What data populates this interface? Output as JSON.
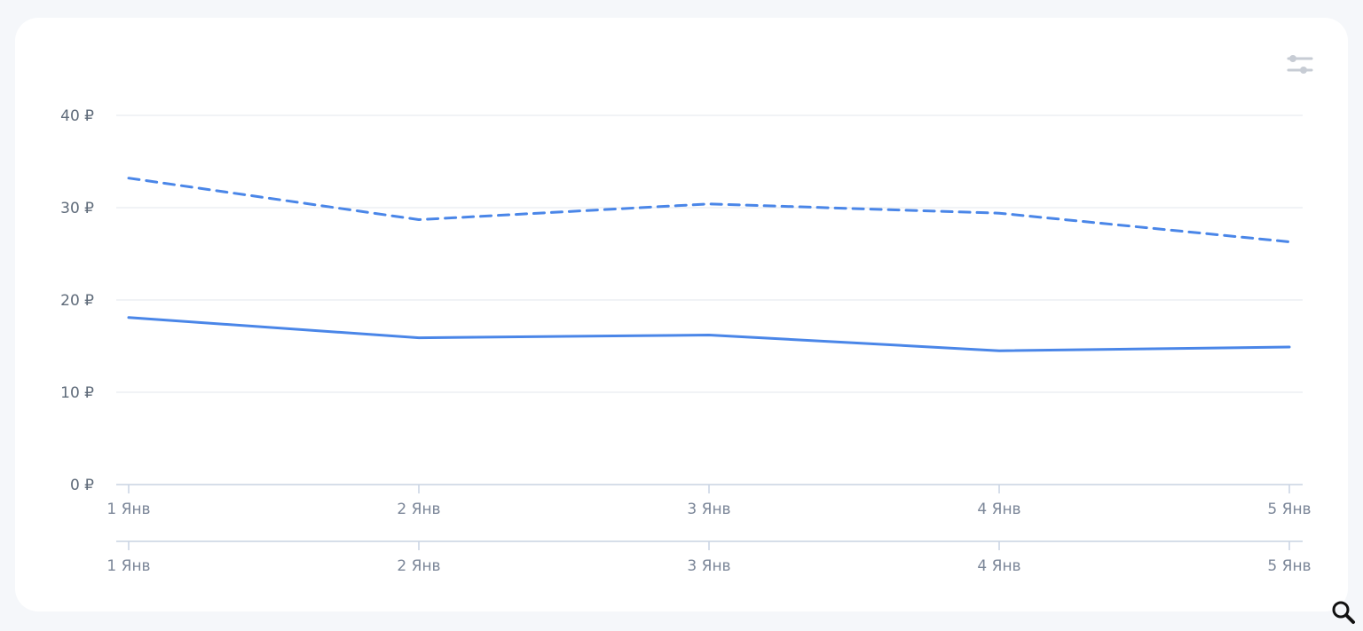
{
  "chart_data": {
    "type": "line",
    "categories": [
      "1 Янв",
      "2 Янв",
      "3 Янв",
      "4 Янв",
      "5 Янв"
    ],
    "y_ticks": [
      "0 ₽",
      "10 ₽",
      "20 ₽",
      "30 ₽",
      "40 ₽"
    ],
    "ylim": [
      0,
      40
    ],
    "grid": true,
    "series": [
      {
        "values": [
          33.2,
          28.7,
          30.4,
          29.4,
          26.3
        ],
        "style": "dashed",
        "color": "#4a86e8"
      },
      {
        "values": [
          18.1,
          15.9,
          16.2,
          14.5,
          14.9
        ],
        "style": "solid",
        "color": "#4a86e8"
      }
    ],
    "navigator_categories": [
      "1 Янв",
      "2 Янв",
      "3 Янв",
      "4 Янв",
      "5 Янв"
    ]
  },
  "toolbar": {
    "settings_icon": "sliders-icon",
    "zoom_icon": "magnifier-icon"
  },
  "colors": {
    "line": "#4a86e8",
    "grid": "#e3e7ec",
    "axis": "#c9d3e2"
  }
}
